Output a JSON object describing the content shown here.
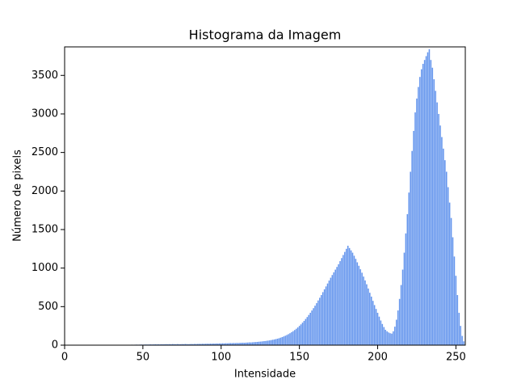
{
  "chart_data": {
    "type": "bar",
    "title": "Histograma da Imagem",
    "x_label": "Intensidade",
    "y_label": "Número de pixels",
    "color": "#6495ed",
    "bar_width": 0.8,
    "x": [
      0,
      1,
      2,
      3,
      4,
      5,
      6,
      7,
      8,
      9,
      10,
      11,
      12,
      13,
      14,
      15,
      16,
      17,
      18,
      19,
      20,
      21,
      22,
      23,
      24,
      25,
      26,
      27,
      28,
      29,
      30,
      31,
      32,
      33,
      34,
      35,
      36,
      37,
      38,
      39,
      40,
      41,
      42,
      43,
      44,
      45,
      46,
      47,
      48,
      49,
      50,
      51,
      52,
      53,
      54,
      55,
      56,
      57,
      58,
      59,
      60,
      61,
      62,
      63,
      64,
      65,
      66,
      67,
      68,
      69,
      70,
      71,
      72,
      73,
      74,
      75,
      76,
      77,
      78,
      79,
      80,
      81,
      82,
      83,
      84,
      85,
      86,
      87,
      88,
      89,
      90,
      91,
      92,
      93,
      94,
      95,
      96,
      97,
      98,
      99,
      100,
      101,
      102,
      103,
      104,
      105,
      106,
      107,
      108,
      109,
      110,
      111,
      112,
      113,
      114,
      115,
      116,
      117,
      118,
      119,
      120,
      121,
      122,
      123,
      124,
      125,
      126,
      127,
      128,
      129,
      130,
      131,
      132,
      133,
      134,
      135,
      136,
      137,
      138,
      139,
      140,
      141,
      142,
      143,
      144,
      145,
      146,
      147,
      148,
      149,
      150,
      151,
      152,
      153,
      154,
      155,
      156,
      157,
      158,
      159,
      160,
      161,
      162,
      163,
      164,
      165,
      166,
      167,
      168,
      169,
      170,
      171,
      172,
      173,
      174,
      175,
      176,
      177,
      178,
      179,
      180,
      181,
      182,
      183,
      184,
      185,
      186,
      187,
      188,
      189,
      190,
      191,
      192,
      193,
      194,
      195,
      196,
      197,
      198,
      199,
      200,
      201,
      202,
      203,
      204,
      205,
      206,
      207,
      208,
      209,
      210,
      211,
      212,
      213,
      214,
      215,
      216,
      217,
      218,
      219,
      220,
      221,
      222,
      223,
      224,
      225,
      226,
      227,
      228,
      229,
      230,
      231,
      232,
      233,
      234,
      235,
      236,
      237,
      238,
      239,
      240,
      241,
      242,
      243,
      244,
      245,
      246,
      247,
      248,
      249,
      250,
      251,
      252,
      253,
      254,
      255
    ],
    "values": [
      0,
      0,
      0,
      0,
      0,
      0,
      0,
      0,
      0,
      0,
      0,
      0,
      1,
      0,
      0,
      1,
      0,
      1,
      0,
      1,
      1,
      0,
      1,
      2,
      1,
      1,
      2,
      1,
      2,
      2,
      2,
      3,
      2,
      3,
      3,
      4,
      3,
      4,
      4,
      5,
      4,
      5,
      5,
      6,
      5,
      6,
      7,
      6,
      7,
      8,
      7,
      8,
      9,
      8,
      9,
      10,
      9,
      10,
      11,
      10,
      11,
      10,
      12,
      11,
      12,
      13,
      12,
      13,
      12,
      14,
      13,
      12,
      14,
      13,
      12,
      14,
      13,
      15,
      14,
      13,
      14,
      15,
      14,
      16,
      15,
      16,
      17,
      16,
      18,
      17,
      18,
      19,
      18,
      20,
      19,
      21,
      20,
      22,
      21,
      23,
      22,
      24,
      23,
      25,
      24,
      26,
      27,
      26,
      28,
      27,
      29,
      28,
      30,
      31,
      32,
      31,
      33,
      34,
      36,
      35,
      37,
      39,
      40,
      42,
      44,
      46,
      48,
      51,
      53,
      56,
      59,
      62,
      66,
      70,
      74,
      79,
      84,
      90,
      97,
      105,
      113,
      122,
      132,
      143,
      155,
      168,
      182,
      197,
      213,
      230,
      250,
      270,
      292,
      315,
      340,
      365,
      392,
      420,
      450,
      480,
      512,
      545,
      580,
      615,
      650,
      688,
      725,
      762,
      800,
      838,
      875,
      910,
      945,
      980,
      1015,
      1050,
      1090,
      1130,
      1170,
      1210,
      1250,
      1290,
      1260,
      1230,
      1200,
      1160,
      1120,
      1075,
      1030,
      985,
      940,
      890,
      840,
      790,
      735,
      680,
      630,
      575,
      520,
      470,
      420,
      370,
      320,
      275,
      235,
      200,
      180,
      165,
      155,
      150,
      180,
      240,
      330,
      450,
      600,
      780,
      980,
      1200,
      1450,
      1700,
      1980,
      2250,
      2520,
      2780,
      3020,
      3200,
      3350,
      3480,
      3580,
      3650,
      3700,
      3750,
      3800,
      3840,
      3700,
      3600,
      3450,
      3300,
      3150,
      3000,
      2850,
      2700,
      2550,
      2400,
      2250,
      2050,
      1850,
      1650,
      1400,
      1150,
      900,
      650,
      420,
      250,
      120,
      50
    ],
    "xlim": [
      0,
      256
    ],
    "xticks": [
      0,
      50,
      100,
      150,
      200,
      250
    ],
    "ylim": [
      0,
      3870
    ],
    "yticks": [
      0,
      500,
      1000,
      1500,
      2000,
      2500,
      3000,
      3500
    ]
  }
}
